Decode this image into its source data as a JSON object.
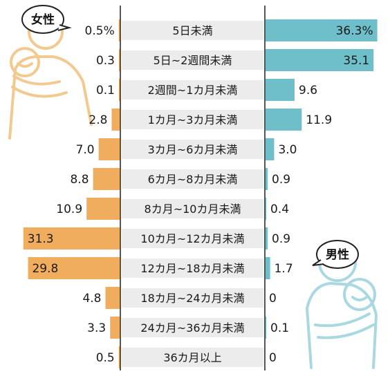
{
  "chart_data": {
    "type": "bar",
    "categories": [
      "5日未満",
      "5日~2週間未満",
      "2週間~1カ月未満",
      "1カ月~3カ月未満",
      "3カ月~6カ月未満",
      "6カ月~8カ月未満",
      "8カ月~10カ月未満",
      "10カ月~12カ月未満",
      "12カ月~18カ月未満",
      "18カ月~24カ月未満",
      "24カ月~36カ月未満",
      "36カ月以上"
    ],
    "series": [
      {
        "name": "女性",
        "values": [
          0.5,
          0.3,
          0.1,
          2.8,
          7.0,
          8.8,
          10.9,
          31.3,
          29.8,
          4.8,
          3.3,
          0.5
        ],
        "labels": [
          "0.5%",
          "0.3",
          "0.1",
          "2.8",
          "7.0",
          "8.8",
          "10.9",
          "31.3",
          "29.8",
          "4.8",
          "3.3",
          "0.5"
        ],
        "color": "#F0AD5E"
      },
      {
        "name": "男性",
        "values": [
          36.3,
          35.1,
          9.6,
          11.9,
          3.0,
          0.9,
          0.4,
          0.9,
          1.7,
          0,
          0.1,
          0
        ],
        "labels": [
          "36.3%",
          "35.1",
          "9.6",
          "11.9",
          "3.0",
          "0.9",
          "0.4",
          "0.9",
          "1.7",
          "0",
          "0.1",
          "0"
        ],
        "color": "#6FBFCB"
      }
    ],
    "colors": {
      "category_band": "#ECECEC",
      "divider": "#555555",
      "figure_woman": "#F2C98E",
      "figure_man": "#A9D8E0"
    },
    "icons": [
      "woman-holding-baby-icon",
      "man-holding-baby-icon"
    ]
  }
}
